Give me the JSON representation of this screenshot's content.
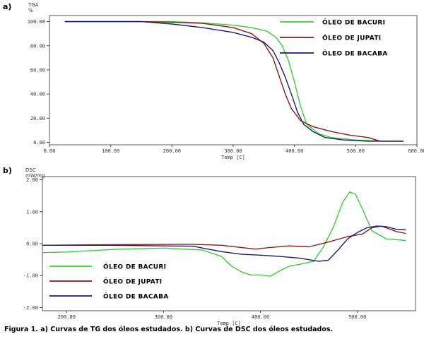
{
  "colors": {
    "bacuri": "#3ccc3c",
    "jupati": "#8b1a1a",
    "bacaba": "#1c1c78",
    "frame": "#555555"
  },
  "caption": "Figura 1. a) Curvas de TG dos óleos estudados. b) Curvas de DSC dos óleos estudados.",
  "chart_data": [
    {
      "type": "line",
      "panel": "a)",
      "ylabel_top": "TGA",
      "ylabel_unit": "%",
      "xlabel": "Temp [C]",
      "xlim": [
        0,
        600
      ],
      "ylim": [
        -2,
        105
      ],
      "x_ticks": [
        0,
        100,
        200,
        300,
        400,
        500,
        600
      ],
      "x_tick_labels": [
        "0.00",
        "100.00",
        "200.00",
        "300.00",
        "400.00",
        "500.00",
        "600.00"
      ],
      "y_ticks": [
        0,
        20,
        40,
        60,
        80,
        100
      ],
      "y_tick_labels": [
        "0.00",
        "20.00",
        "40.00",
        "60.00",
        "80.00",
        "100.00"
      ],
      "legend_position": "top-right",
      "series": [
        {
          "key": "bacuri",
          "name": "ÓLEO DE BACURI",
          "points": [
            [
              25,
              100
            ],
            [
              100,
              100
            ],
            [
              150,
              100
            ],
            [
              200,
              100
            ],
            [
              250,
              99
            ],
            [
              300,
              97
            ],
            [
              330,
              95
            ],
            [
              355,
              92
            ],
            [
              370,
              87
            ],
            [
              380,
              80
            ],
            [
              390,
              68
            ],
            [
              400,
              50
            ],
            [
              410,
              30
            ],
            [
              420,
              15
            ],
            [
              440,
              7
            ],
            [
              460,
              4
            ],
            [
              500,
              2
            ],
            [
              550,
              1
            ],
            [
              578,
              1
            ]
          ]
        },
        {
          "key": "jupati",
          "name": "ÓLEO DE JUPATI",
          "points": [
            [
              25,
              100
            ],
            [
              150,
              100
            ],
            [
              200,
              99.5
            ],
            [
              250,
              98.5
            ],
            [
              300,
              95
            ],
            [
              330,
              90
            ],
            [
              350,
              82
            ],
            [
              365,
              70
            ],
            [
              375,
              55
            ],
            [
              385,
              40
            ],
            [
              395,
              28
            ],
            [
              410,
              18
            ],
            [
              430,
              13
            ],
            [
              460,
              9
            ],
            [
              490,
              6
            ],
            [
              520,
              4
            ],
            [
              540,
              1
            ],
            [
              578,
              1
            ]
          ]
        },
        {
          "key": "bacaba",
          "name": "ÓLEO DE BACABA",
          "points": [
            [
              25,
              100
            ],
            [
              150,
              100
            ],
            [
              200,
              98
            ],
            [
              250,
              95
            ],
            [
              300,
              91
            ],
            [
              330,
              87
            ],
            [
              350,
              83
            ],
            [
              365,
              76
            ],
            [
              375,
              66
            ],
            [
              385,
              54
            ],
            [
              395,
              40
            ],
            [
              405,
              25
            ],
            [
              415,
              15
            ],
            [
              430,
              9
            ],
            [
              450,
              4
            ],
            [
              480,
              2
            ],
            [
              520,
              1
            ],
            [
              578,
              1
            ]
          ]
        }
      ]
    },
    {
      "type": "line",
      "panel": "b)",
      "ylabel_top": "DSC",
      "ylabel_unit": "mW/mg",
      "xlabel": "Temp [C]",
      "xlim": [
        175,
        560
      ],
      "ylim": [
        -2.1,
        2.1
      ],
      "x_ticks": [
        200,
        300,
        400,
        500
      ],
      "x_tick_labels": [
        "200.00",
        "300.00",
        "400.00",
        "500.00"
      ],
      "y_ticks": [
        -2,
        -1,
        0,
        1,
        2
      ],
      "y_tick_labels": [
        "-2.00",
        "-1.00",
        "0.00",
        "1.00",
        "2.00"
      ],
      "legend_position": "bottom-left",
      "series": [
        {
          "key": "bacuri",
          "name": "ÓLEO DE BACURI",
          "points": [
            [
              175,
              -0.28
            ],
            [
              200,
              -0.26
            ],
            [
              250,
              -0.18
            ],
            [
              300,
              -0.14
            ],
            [
              340,
              -0.2
            ],
            [
              360,
              -0.4
            ],
            [
              370,
              -0.7
            ],
            [
              380,
              -0.88
            ],
            [
              390,
              -0.98
            ],
            [
              400,
              -0.98
            ],
            [
              410,
              -1.02
            ],
            [
              420,
              -0.85
            ],
            [
              430,
              -0.7
            ],
            [
              440,
              -0.65
            ],
            [
              455,
              -0.55
            ],
            [
              465,
              -0.1
            ],
            [
              475,
              0.5
            ],
            [
              485,
              1.3
            ],
            [
              492,
              1.62
            ],
            [
              498,
              1.55
            ],
            [
              505,
              1.1
            ],
            [
              515,
              0.4
            ],
            [
              530,
              0.15
            ],
            [
              550,
              0.1
            ]
          ]
        },
        {
          "key": "jupati",
          "name": "ÓLEO DE JUPATI",
          "points": [
            [
              175,
              -0.05
            ],
            [
              250,
              -0.03
            ],
            [
              330,
              -0.02
            ],
            [
              360,
              -0.05
            ],
            [
              380,
              -0.12
            ],
            [
              395,
              -0.17
            ],
            [
              410,
              -0.12
            ],
            [
              430,
              -0.07
            ],
            [
              450,
              -0.1
            ],
            [
              470,
              0.05
            ],
            [
              490,
              0.22
            ],
            [
              505,
              0.3
            ],
            [
              515,
              0.5
            ],
            [
              525,
              0.55
            ],
            [
              540,
              0.38
            ],
            [
              550,
              0.32
            ]
          ]
        },
        {
          "key": "bacaba",
          "name": "ÓLEO DE BACABA",
          "points": [
            [
              175,
              -0.05
            ],
            [
              250,
              -0.05
            ],
            [
              330,
              -0.08
            ],
            [
              360,
              -0.25
            ],
            [
              380,
              -0.33
            ],
            [
              400,
              -0.36
            ],
            [
              420,
              -0.4
            ],
            [
              440,
              -0.45
            ],
            [
              460,
              -0.55
            ],
            [
              470,
              -0.52
            ],
            [
              480,
              -0.2
            ],
            [
              490,
              0.15
            ],
            [
              500,
              0.35
            ],
            [
              510,
              0.5
            ],
            [
              520,
              0.55
            ],
            [
              530,
              0.53
            ],
            [
              540,
              0.45
            ],
            [
              550,
              0.43
            ]
          ]
        }
      ]
    }
  ]
}
